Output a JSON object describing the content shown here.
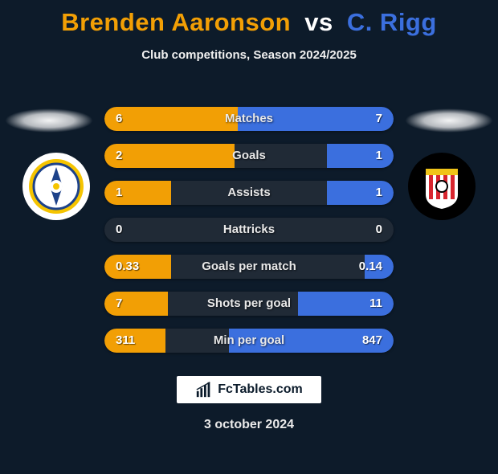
{
  "title": {
    "player1": "Brenden Aaronson",
    "vs": "vs",
    "player2": "C. Rigg"
  },
  "subtitle": "Club competitions, Season 2024/2025",
  "colors": {
    "player1": "#f29f05",
    "player2": "#3b6fde",
    "background": "#0d1b2a",
    "row_bg": "#202a36",
    "text": "#ffffff"
  },
  "badges": {
    "left": {
      "name": "leeds-united-badge",
      "bg": "#ffffff",
      "inner": "#f5c400",
      "accent": "#1d428a"
    },
    "right": {
      "name": "sunderland-badge",
      "bg": "#000000",
      "stripes": "#d8252e",
      "accent": "#f0c419"
    }
  },
  "stats": [
    {
      "label": "Matches",
      "left_text": "6",
      "right_text": "7",
      "left_pct": 46,
      "right_pct": 54
    },
    {
      "label": "Goals",
      "left_text": "2",
      "right_text": "1",
      "left_pct": 45,
      "right_pct": 23
    },
    {
      "label": "Assists",
      "left_text": "1",
      "right_text": "1",
      "left_pct": 23,
      "right_pct": 23
    },
    {
      "label": "Hattricks",
      "left_text": "0",
      "right_text": "0",
      "left_pct": 0,
      "right_pct": 0
    },
    {
      "label": "Goals per match",
      "left_text": "0.33",
      "right_text": "0.14",
      "left_pct": 23,
      "right_pct": 10
    },
    {
      "label": "Shots per goal",
      "left_text": "7",
      "right_text": "11",
      "left_pct": 22,
      "right_pct": 33
    },
    {
      "label": "Min per goal",
      "left_text": "311",
      "right_text": "847",
      "left_pct": 21,
      "right_pct": 57
    }
  ],
  "footer": {
    "brand": "FcTables.com",
    "date": "3 october 2024"
  }
}
